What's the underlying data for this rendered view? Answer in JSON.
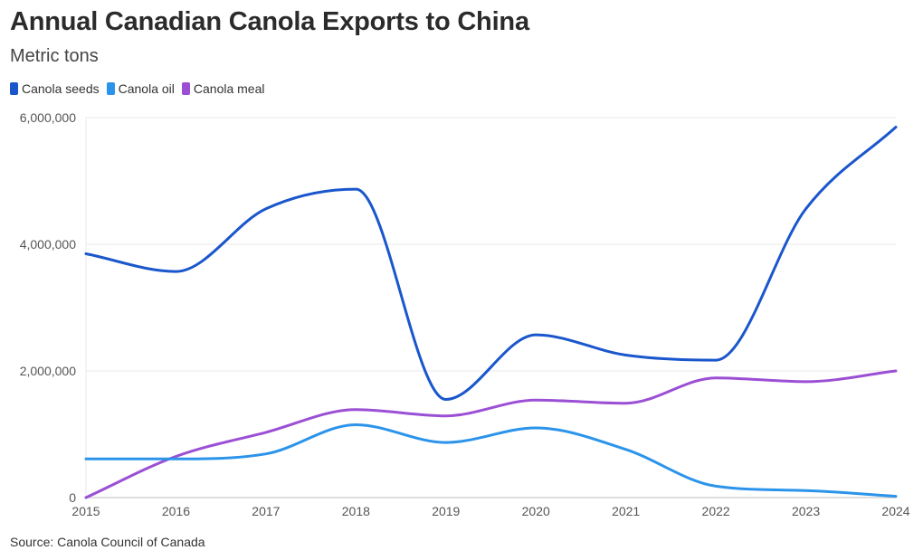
{
  "chart_data": {
    "type": "line",
    "title": "Annual Canadian Canola Exports to China",
    "subtitle": "Metric tons",
    "x": [
      2015,
      2016,
      2017,
      2018,
      2019,
      2020,
      2021,
      2022,
      2023,
      2024
    ],
    "x_tick_labels": [
      "2015",
      "2016",
      "2017",
      "2018",
      "2019",
      "2020",
      "2021",
      "2022",
      "2023",
      "2024"
    ],
    "y_ticks": [
      0,
      2000000,
      4000000,
      6000000
    ],
    "y_tick_labels": [
      "0",
      "2,000,000",
      "4,000,000",
      "6,000,000"
    ],
    "ylim": [
      0,
      6000000
    ],
    "xlabel": "",
    "ylabel": "",
    "grid": true,
    "legend_position": "top-left",
    "series": [
      {
        "name": "Canola seeds",
        "color": "#1a56cc",
        "values": [
          3850000,
          3570000,
          4560000,
          4870000,
          1550000,
          2570000,
          2250000,
          2170000,
          4560000,
          5850000
        ]
      },
      {
        "name": "Canola oil",
        "color": "#2b94ea",
        "values": [
          610000,
          610000,
          690000,
          1150000,
          870000,
          1100000,
          760000,
          180000,
          110000,
          20000
        ]
      },
      {
        "name": "Canola meal",
        "color": "#9b4fd4",
        "values": [
          0,
          650000,
          1030000,
          1390000,
          1290000,
          1540000,
          1490000,
          1890000,
          1830000,
          2000000
        ]
      }
    ]
  },
  "footer": {
    "source": "Source: Canola Council of Canada"
  }
}
